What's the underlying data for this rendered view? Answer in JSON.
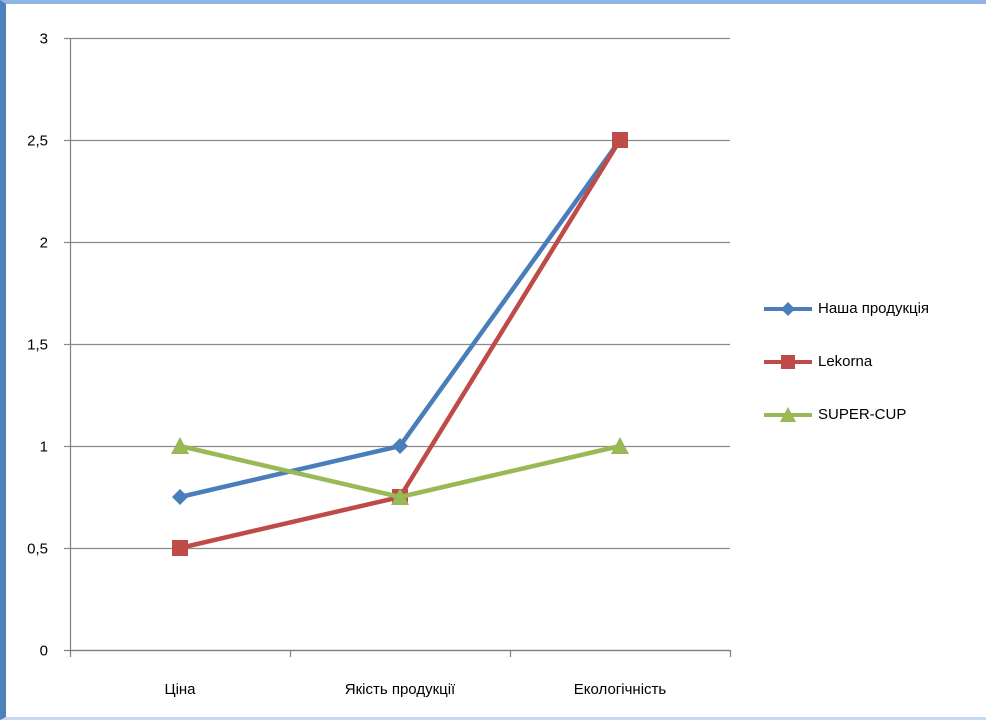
{
  "chart_data": {
    "type": "line",
    "title": "",
    "xlabel": "",
    "ylabel": "",
    "categories": [
      "Ціна",
      "Якість продукції",
      "Екологічність"
    ],
    "ylim": [
      0,
      3
    ],
    "yticks": [
      0,
      0.5,
      1,
      1.5,
      2,
      2.5,
      3
    ],
    "ytick_labels": [
      "0",
      "0,5",
      "1",
      "1,5",
      "2",
      "2,5",
      "3"
    ],
    "grid": true,
    "legend_position": "right",
    "series": [
      {
        "name": "Наша продукція",
        "values": [
          0.75,
          1,
          2.5
        ],
        "color": "#4a7ebb",
        "marker": "diamond"
      },
      {
        "name": "Lekorna",
        "values": [
          0.5,
          0.75,
          2.5
        ],
        "color": "#be4b48",
        "marker": "square"
      },
      {
        "name": "SUPER-CUP",
        "values": [
          1,
          0.75,
          1
        ],
        "color": "#98b954",
        "marker": "triangle"
      }
    ]
  }
}
